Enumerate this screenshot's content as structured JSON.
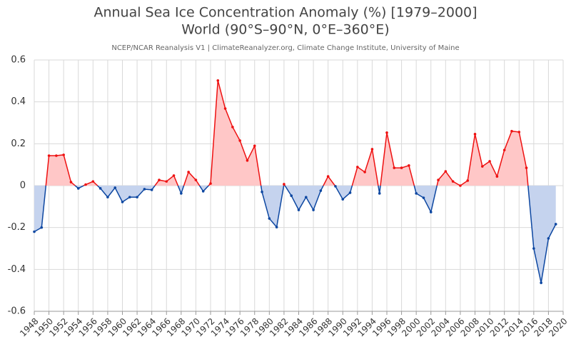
{
  "chart_data": {
    "type": "line",
    "title": "Annual Sea Ice Concentration Anomaly (%) [1979–2000]",
    "subtitle": "World (90°S–90°N, 0°E–360°E)",
    "source": "NCEP/NCAR Reanalysis V1 | ClimateReanalyzer.org, Climate Change Institute, University of Maine",
    "x": [
      1948,
      1949,
      1950,
      1951,
      1952,
      1953,
      1954,
      1955,
      1956,
      1957,
      1958,
      1959,
      1960,
      1961,
      1962,
      1963,
      1964,
      1965,
      1966,
      1967,
      1968,
      1969,
      1970,
      1971,
      1972,
      1973,
      1974,
      1975,
      1976,
      1977,
      1978,
      1979,
      1980,
      1981,
      1982,
      1983,
      1984,
      1985,
      1986,
      1987,
      1988,
      1989,
      1990,
      1991,
      1992,
      1993,
      1994,
      1995,
      1996,
      1997,
      1998,
      1999,
      2000,
      2001,
      2002,
      2003,
      2004,
      2005,
      2006,
      2007,
      2008,
      2009,
      2010,
      2011,
      2012,
      2013,
      2014,
      2015,
      2016,
      2017,
      2018,
      2019
    ],
    "values": [
      -0.22,
      -0.2,
      0.143,
      0.143,
      0.147,
      0.017,
      -0.013,
      0.005,
      0.02,
      -0.013,
      -0.055,
      -0.01,
      -0.078,
      -0.055,
      -0.055,
      -0.017,
      -0.02,
      0.027,
      0.02,
      0.048,
      -0.037,
      0.065,
      0.027,
      -0.027,
      0.01,
      0.502,
      0.368,
      0.28,
      0.215,
      0.12,
      0.19,
      -0.03,
      -0.157,
      -0.198,
      0.007,
      -0.048,
      -0.116,
      -0.055,
      -0.116,
      -0.024,
      0.044,
      -0.003,
      -0.065,
      -0.034,
      0.089,
      0.065,
      0.174,
      -0.037,
      0.253,
      0.085,
      0.085,
      0.096,
      -0.037,
      -0.058,
      -0.126,
      0.027,
      0.068,
      0.02,
      0.0,
      0.024,
      0.246,
      0.092,
      0.116,
      0.044,
      0.17,
      0.26,
      0.256,
      0.085,
      -0.3,
      -0.464,
      -0.252,
      -0.184
    ],
    "positive_color": "#ee1111",
    "negative_color": "#0d47a1",
    "positive_fill": "#ffc7c7",
    "negative_fill": "#c5d3ee",
    "xlim": [
      1948,
      2020
    ],
    "xticks": [
      1948,
      1950,
      1952,
      1954,
      1956,
      1958,
      1960,
      1962,
      1964,
      1966,
      1968,
      1970,
      1972,
      1974,
      1976,
      1978,
      1980,
      1982,
      1984,
      1986,
      1988,
      1990,
      1992,
      1994,
      1996,
      1998,
      2000,
      2002,
      2004,
      2006,
      2008,
      2010,
      2012,
      2014,
      2016,
      2018,
      2020
    ],
    "ylim": [
      -0.6,
      0.6
    ],
    "yticks": [
      -0.6,
      -0.4,
      -0.2,
      0,
      0.2,
      0.4,
      0.6
    ],
    "grid": true
  }
}
